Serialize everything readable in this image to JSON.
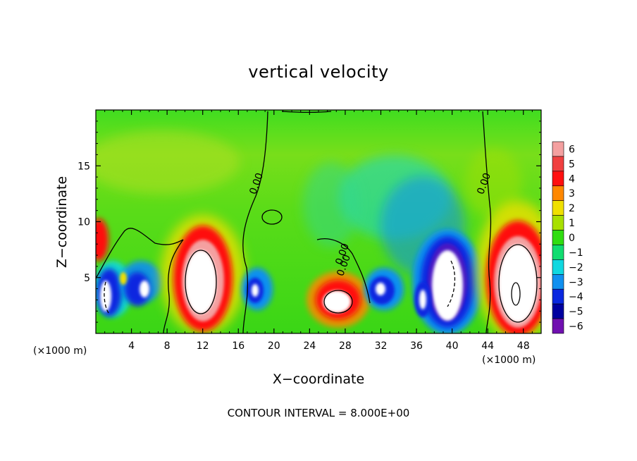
{
  "chart_data": {
    "type": "heatmap",
    "title": "vertical velocity",
    "xlabel": "X−coordinate",
    "ylabel": "Z−coordinate",
    "x_unit": "(×1000 m)",
    "footer": "CONTOUR INTERVAL = 8.000E+00",
    "xlim": [
      0,
      50
    ],
    "ylim": [
      0,
      20
    ],
    "x_ticks": [
      4,
      8,
      12,
      16,
      20,
      24,
      28,
      32,
      36,
      40,
      44,
      48
    ],
    "y_ticks": [
      5,
      10,
      15
    ],
    "colorbar": {
      "levels": [
        6,
        5,
        4,
        3,
        2,
        1,
        0,
        -1,
        -2,
        -3,
        -4,
        -5,
        -6
      ],
      "labels": [
        "6",
        "5",
        "4",
        "3",
        "2",
        "1",
        "0",
        "−1",
        "−2",
        "−3",
        "−4",
        "−5",
        "−6"
      ],
      "colors": [
        "#f4a0a0",
        "#f04040",
        "#ff1010",
        "#ff8800",
        "#f0e000",
        "#a8e000",
        "#30dd10",
        "#10dd70",
        "#10d8e0",
        "#1090f0",
        "#0a28e0",
        "#0000a0",
        "#7010b0"
      ]
    },
    "features": [
      {
        "x": 1.5,
        "z": 3.5,
        "w": -5
      },
      {
        "x": 4.5,
        "z": 4.0,
        "w": -5
      },
      {
        "x": 11.5,
        "z": 5.0,
        "w": 6
      },
      {
        "x": 18.0,
        "z": 3.5,
        "w": -5
      },
      {
        "x": 27.0,
        "z": 3.0,
        "w": 6
      },
      {
        "x": 31.5,
        "z": 4.0,
        "w": -5
      },
      {
        "x": 35.5,
        "z": 3.0,
        "w": -6
      },
      {
        "x": 39.5,
        "z": 4.5,
        "w": -6
      },
      {
        "x": 47.0,
        "z": 5.0,
        "w": 6
      }
    ],
    "contour_labels": [
      "0.00",
      "0.00",
      "0.00",
      "0.00"
    ]
  }
}
